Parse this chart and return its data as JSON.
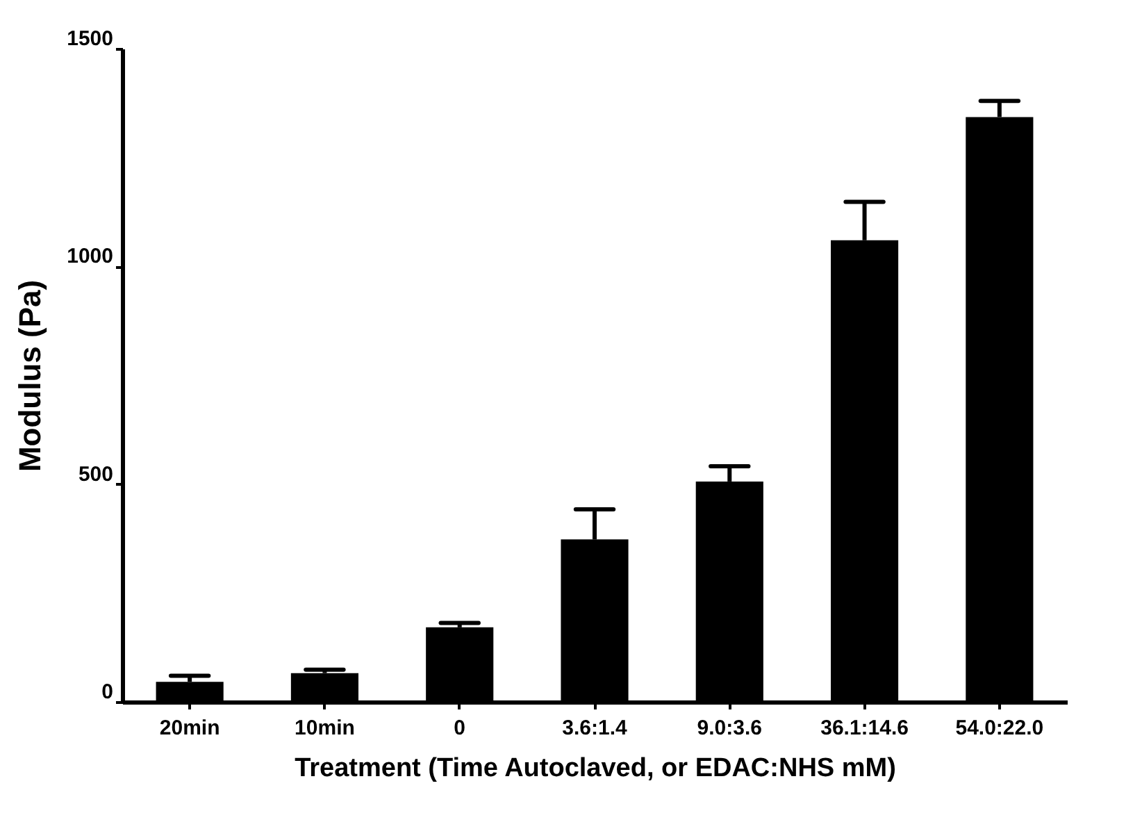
{
  "chart_data": {
    "type": "bar",
    "xlabel": "Treatment (Time Autoclaved, or EDAC:NHS mM)",
    "ylabel": "Modulus (Pa)",
    "categories": [
      "20min",
      "10min",
      "0",
      "3.6:1.4",
      "9.0:3.6",
      "36.1:14.6",
      "54.0:22.0"
    ],
    "values": [
      46,
      66,
      171,
      373,
      506,
      1060,
      1343
    ],
    "errors": [
      [
        46,
        60
      ],
      [
        66,
        74
      ],
      [
        171,
        181
      ],
      [
        373,
        442
      ],
      [
        506,
        541
      ],
      [
        1060,
        1148
      ],
      [
        1343,
        1380
      ]
    ],
    "color": "#000000",
    "ylim": [
      0,
      1500
    ],
    "yticks": [
      0,
      500,
      1000,
      1500
    ],
    "grid": false
  }
}
